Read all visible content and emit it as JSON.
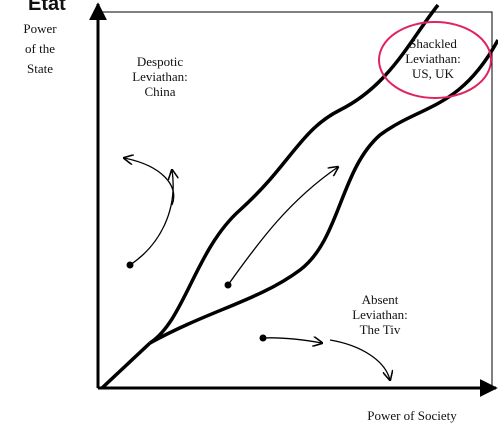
{
  "header": {
    "title": "Etat"
  },
  "axes": {
    "y_label": [
      "Power",
      "of the",
      "State"
    ],
    "x_label": "Power of Society"
  },
  "regions": [
    {
      "lines": [
        "Despotic",
        "Leviathan:",
        "China"
      ]
    },
    {
      "lines": [
        "Shackled",
        "Leviathan:",
        "US, UK"
      ]
    },
    {
      "lines": [
        "Absent",
        "Leviathan:",
        "The Tiv"
      ]
    }
  ]
}
